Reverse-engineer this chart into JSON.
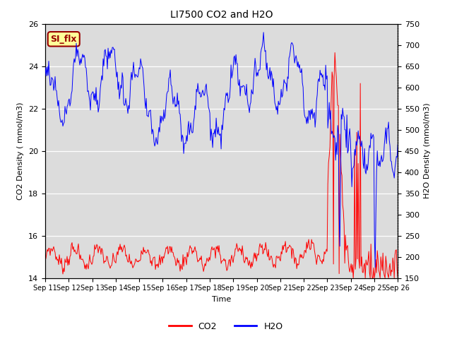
{
  "title": "LI7500 CO2 and H2O",
  "xlabel": "Time",
  "ylabel_left": "CO2 Density ( mmol/m3)",
  "ylabel_right": "H2O Density (mmol/m3)",
  "ylim_left": [
    14,
    26
  ],
  "ylim_right": [
    150,
    750
  ],
  "yticks_left": [
    14,
    16,
    18,
    20,
    22,
    24,
    26
  ],
  "yticks_right": [
    150,
    200,
    250,
    300,
    350,
    400,
    450,
    500,
    550,
    600,
    650,
    700,
    750
  ],
  "xtick_labels": [
    "Sep 11",
    "Sep 12",
    "Sep 13",
    "Sep 14",
    "Sep 15",
    "Sep 16",
    "Sep 17",
    "Sep 18",
    "Sep 19",
    "Sep 20",
    "Sep 21",
    "Sep 22",
    "Sep 23",
    "Sep 24",
    "Sep 25",
    "Sep 26"
  ],
  "co2_color": "#ff0000",
  "h2o_color": "#0000ff",
  "bg_color": "#dcdcdc",
  "annotation_text": "SI_flx",
  "annotation_color": "#990000",
  "annotation_bg": "#ffff99",
  "legend_labels": [
    "CO2",
    "H2O"
  ],
  "n_points": 500,
  "figsize": [
    6.4,
    4.8
  ],
  "dpi": 100
}
